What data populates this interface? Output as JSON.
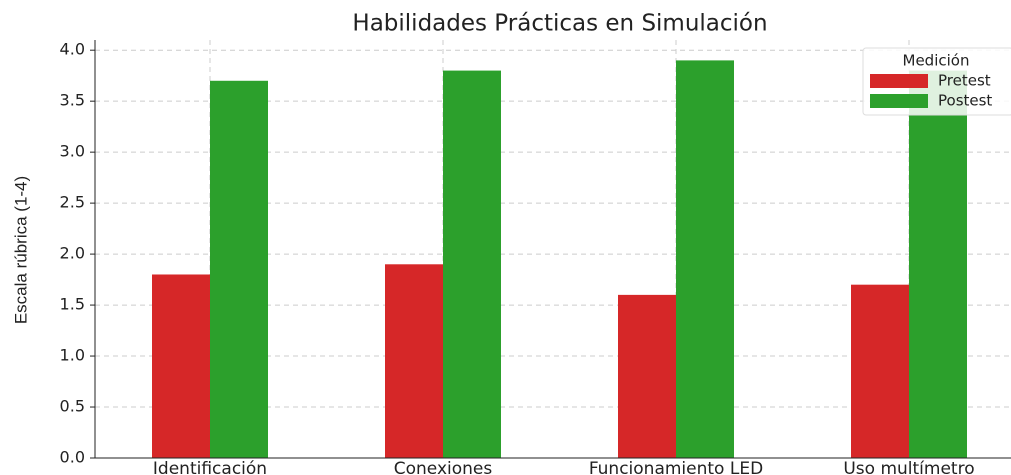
{
  "chart_data": {
    "type": "bar",
    "title": "Habilidades Prácticas en Simulación",
    "y_label": "Escala rúbrica (1-4)",
    "categories": [
      "Identificación",
      "Conexiones",
      "Funcionamiento LED",
      "Uso multímetro"
    ],
    "series": [
      {
        "name": "Pretest",
        "color": "#d62728",
        "values": [
          1.8,
          1.9,
          1.6,
          1.7
        ]
      },
      {
        "name": "Postest",
        "color": "#2ca02c",
        "values": [
          3.7,
          3.8,
          3.9,
          3.8
        ]
      }
    ],
    "legend_title": "Medición",
    "legend_position": "upper right",
    "ylim": [
      0,
      4.1
    ],
    "yticks": [
      {
        "value": 0,
        "label": "0.0"
      },
      0.5,
      {
        "value": 1,
        "label": "1.0"
      },
      1.5,
      {
        "value": 2,
        "label": "2.0"
      },
      2.5,
      {
        "value": 3,
        "label": "3.0"
      },
      3.5,
      {
        "value": 4,
        "label": "4.0"
      }
    ],
    "grid": true
  }
}
